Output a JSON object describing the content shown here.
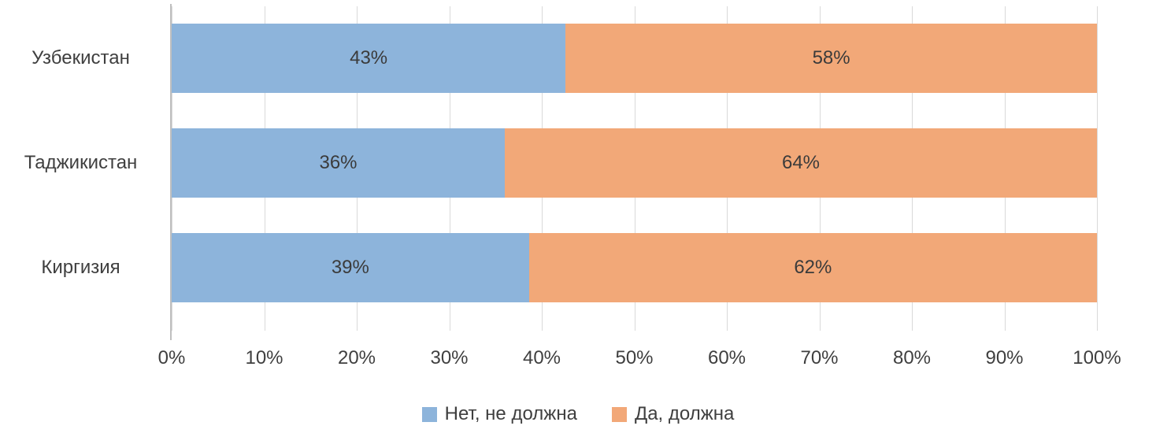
{
  "chart_data": {
    "type": "bar",
    "orientation": "horizontal",
    "stacked": true,
    "title": "",
    "xlabel": "",
    "ylabel": "",
    "categories": [
      "Узбекистан",
      "Таджикистан",
      "Киргизия"
    ],
    "series": [
      {
        "name": "Нет, не должна",
        "color": "#8db4db",
        "values": [
          43,
          36,
          39
        ]
      },
      {
        "name": "Да, должна",
        "color": "#f2a878",
        "values": [
          58,
          64,
          62
        ]
      }
    ],
    "data_label_suffix": "%",
    "x_ticks": [
      "0%",
      "10%",
      "20%",
      "30%",
      "40%",
      "50%",
      "60%",
      "70%",
      "80%",
      "90%",
      "100%"
    ],
    "xlim": [
      0,
      100
    ],
    "grid": true,
    "gridline_color": "#d9d9d9",
    "axis_line_color": "#bfbfbf",
    "legend_position": "bottom"
  }
}
